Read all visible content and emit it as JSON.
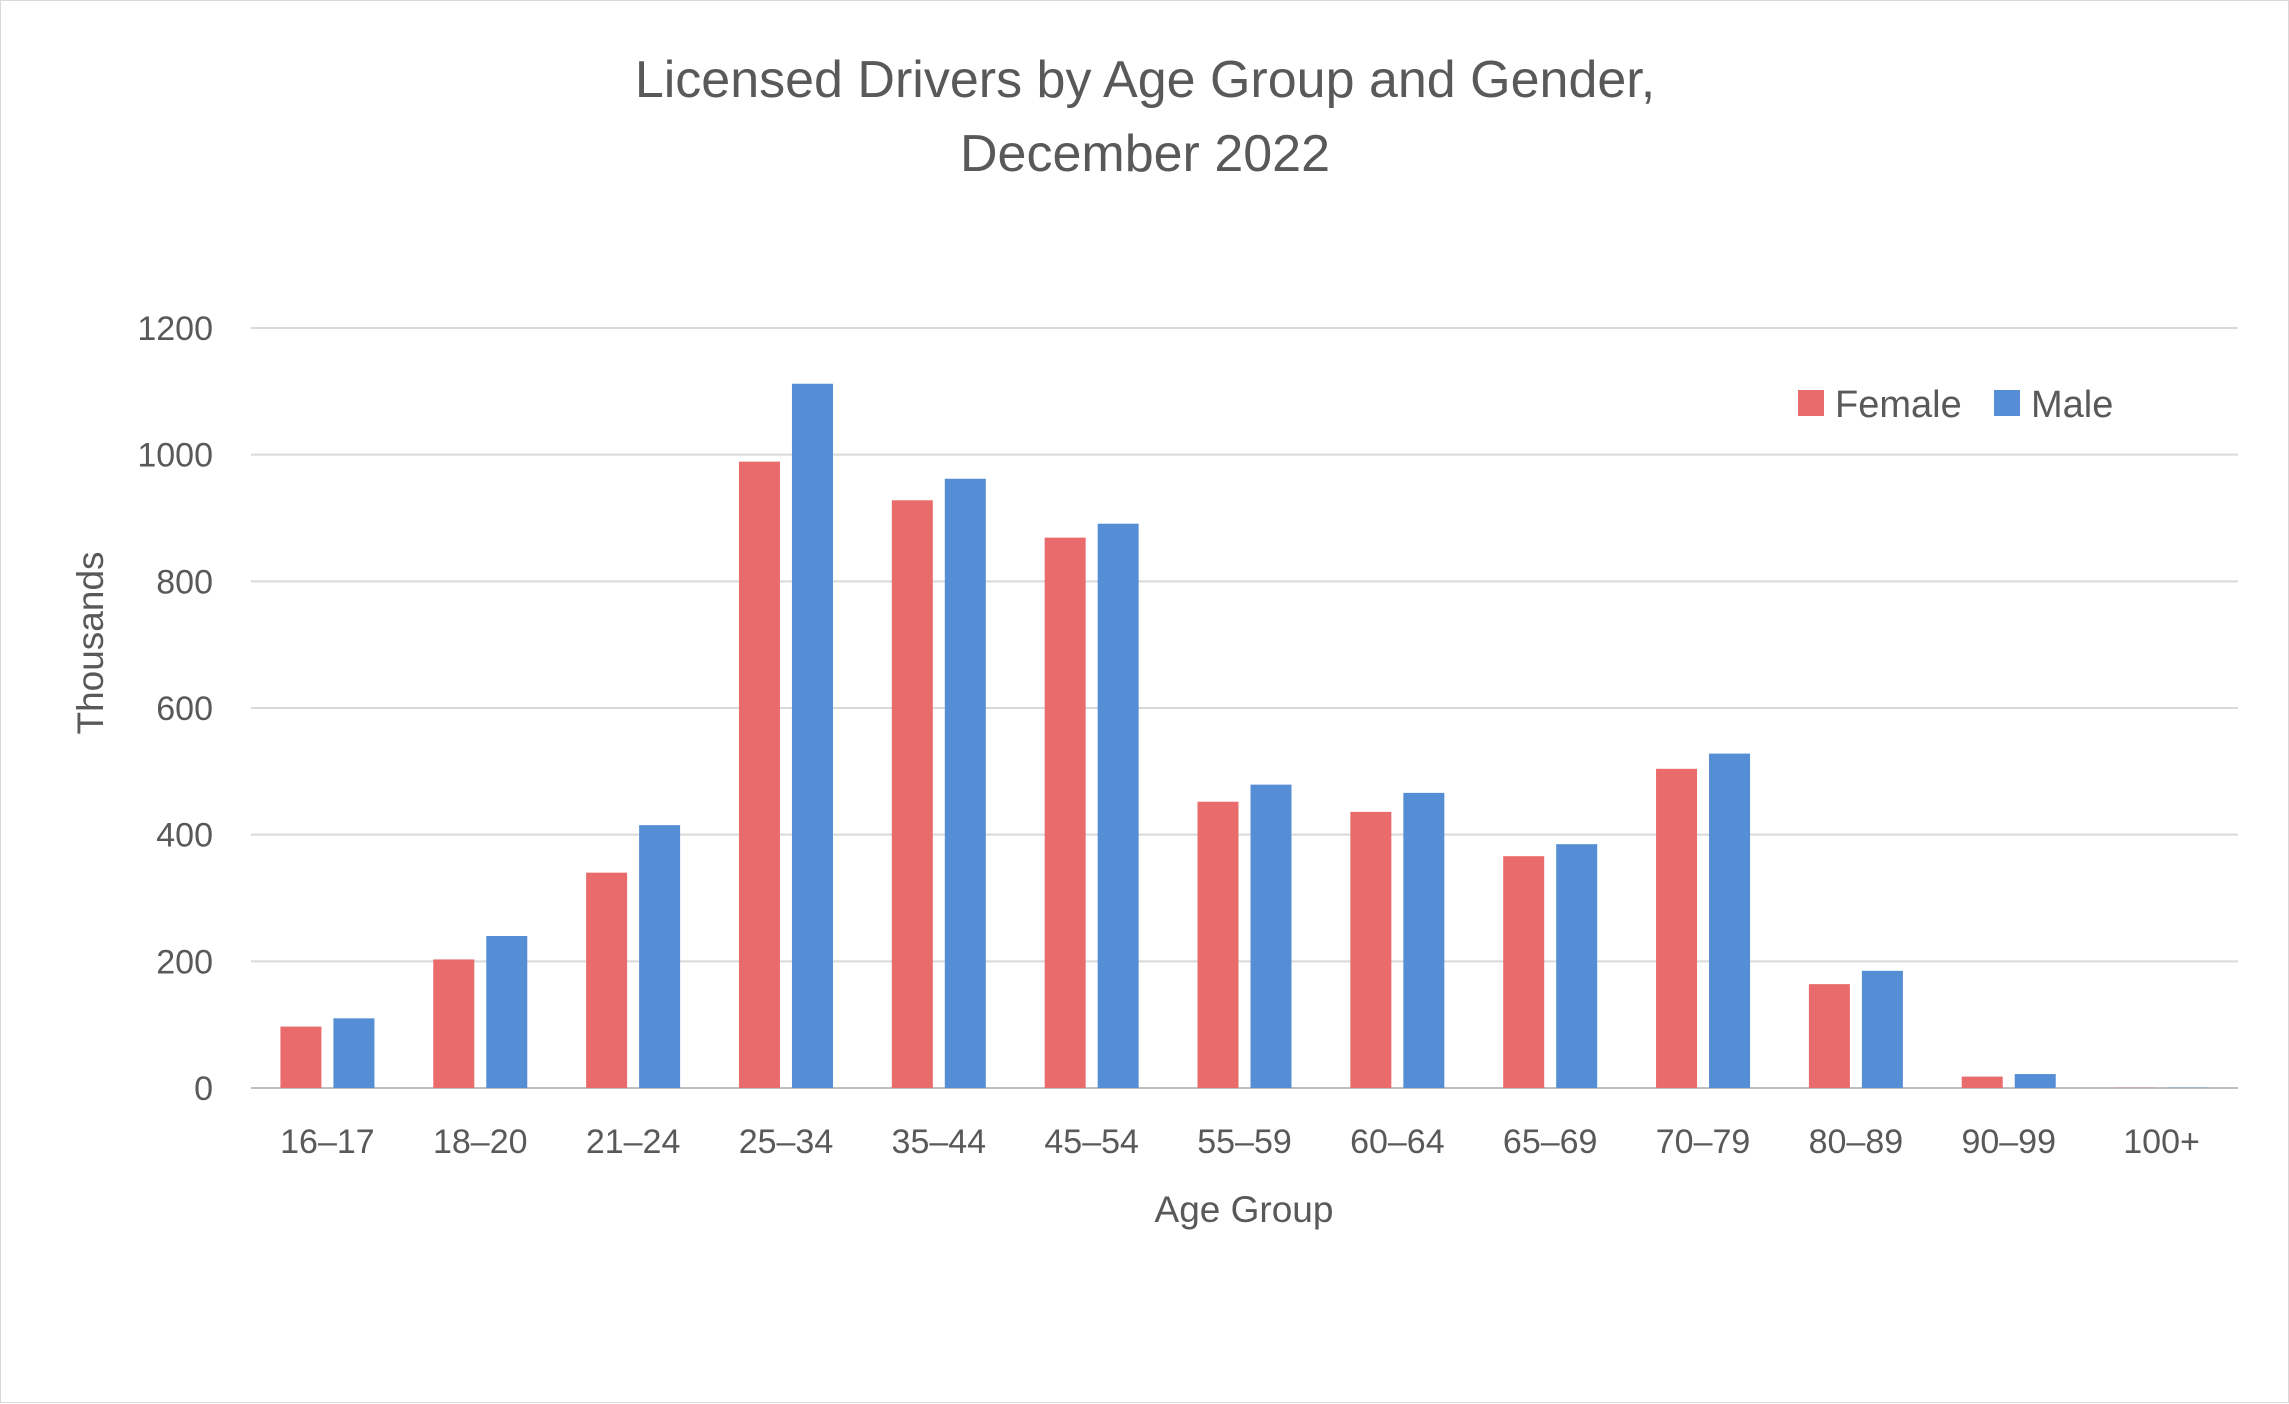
{
  "chart_data": {
    "type": "bar",
    "title_line1": "Licensed Drivers by Age Group and Gender,",
    "title_line2": "December 2022",
    "xlabel": "Age Group",
    "ylabel": "Thousands",
    "ylim": [
      0,
      1200
    ],
    "yticks": [
      "0",
      "200",
      "400",
      "600",
      "800",
      "1000",
      "1200"
    ],
    "grid": true,
    "legend_position": "top-right",
    "categories": [
      "16–17",
      "18–20",
      "21–24",
      "25–34",
      "35–44",
      "45–54",
      "55–59",
      "60–64",
      "65–69",
      "70–79",
      "80–89",
      "90–99",
      "100+"
    ],
    "series": [
      {
        "name": "Female",
        "color": "#e96b6b",
        "values": [
          97,
          203,
          340,
          989,
          928,
          869,
          452,
          436,
          366,
          504,
          164,
          18,
          0.3
        ]
      },
      {
        "name": "Male",
        "color": "#558ed5",
        "values": [
          110,
          240,
          415,
          1112,
          962,
          891,
          479,
          466,
          385,
          528,
          185,
          22,
          0.3
        ]
      }
    ]
  }
}
